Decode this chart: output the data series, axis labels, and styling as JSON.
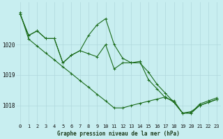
{
  "title": "Graphe pression niveau de la mer (hPa)",
  "background_color": "#c8eef0",
  "grid_color": "#b0d8dc",
  "line_color": "#1a6b1a",
  "ylim": [
    1017.4,
    1021.4
  ],
  "yticks": [
    1018,
    1019,
    1020
  ],
  "xlim": [
    -0.5,
    23.5
  ],
  "series1": [
    1021.0,
    1020.3,
    1020.45,
    1020.2,
    1020.2,
    1019.4,
    1019.65,
    1019.8,
    1020.3,
    1020.65,
    1020.85,
    1020.0,
    1019.55,
    1019.4,
    1019.45,
    1018.85,
    1018.55,
    1018.25,
    1018.15,
    1017.75,
    1017.75,
    1018.05,
    1018.15,
    1018.25
  ],
  "series2": [
    1021.0,
    1020.3,
    1020.45,
    1020.2,
    1020.2,
    1019.4,
    1019.65,
    1019.8,
    1019.7,
    1019.6,
    1020.0,
    1019.2,
    1019.4,
    1019.4,
    1019.4,
    1019.1,
    1018.7,
    1018.4,
    1018.1,
    1017.75,
    1017.75,
    1018.0,
    1018.1,
    1018.2
  ],
  "series3": [
    1021.05,
    1020.18,
    1019.95,
    1019.72,
    1019.5,
    1019.27,
    1019.05,
    1018.82,
    1018.6,
    1018.37,
    1018.15,
    1017.92,
    1017.92,
    1018.0,
    1018.07,
    1018.14,
    1018.21,
    1018.28,
    1018.1,
    1017.75,
    1017.8,
    1018.0,
    1018.1,
    1018.2
  ],
  "title_fontsize": 5.5,
  "tick_fontsize": 5.0,
  "linewidth": 0.8,
  "markersize": 2.5
}
